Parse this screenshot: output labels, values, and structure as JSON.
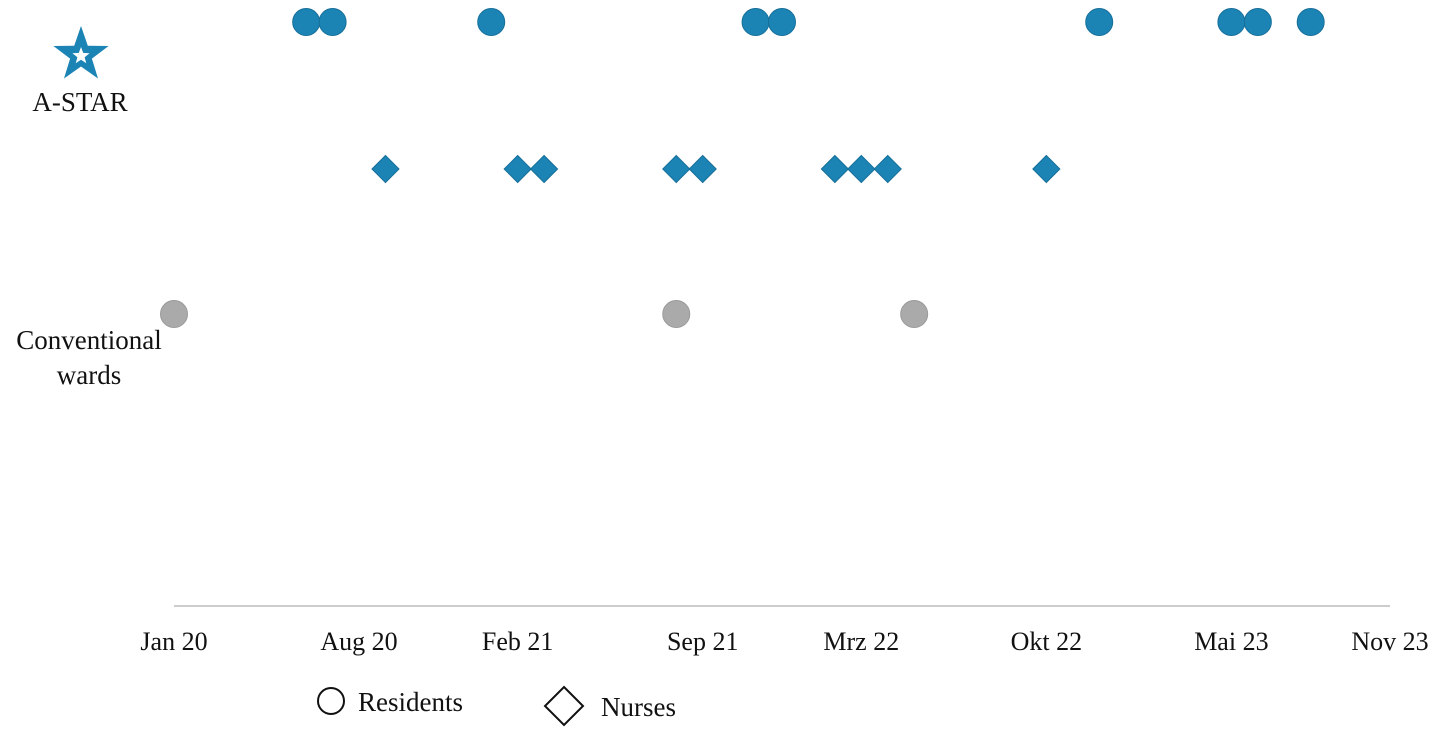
{
  "chart_data": {
    "type": "scatter",
    "title": "",
    "xlabel": "",
    "ylabel": "",
    "x_axis": {
      "tick_labels": [
        "Jan 20",
        "Aug 20",
        "Feb 21",
        "Sep 21",
        "Mrz 22",
        "Okt 22",
        "Mai 23",
        "Nov 23"
      ],
      "tick_dates": [
        "2020-01",
        "2020-08",
        "2021-02",
        "2021-09",
        "2022-03",
        "2022-10",
        "2023-05",
        "2023-11"
      ],
      "range": [
        "2020-01",
        "2023-11"
      ]
    },
    "groups": [
      {
        "label": "A-STAR",
        "icon": "star-icon",
        "color": "#1b84b5"
      },
      {
        "label": "Conventional\nwards",
        "color": "#aaaaaa"
      }
    ],
    "series": [
      {
        "name": "Residents",
        "group": "A-STAR",
        "marker": "circle",
        "color": "#1b84b5",
        "x": [
          "2020-06",
          "2020-07",
          "2021-01",
          "2021-11",
          "2021-12",
          "2022-12",
          "2023-05",
          "2023-06",
          "2023-08"
        ]
      },
      {
        "name": "Nurses",
        "group": "A-STAR",
        "marker": "diamond",
        "color": "#1b84b5",
        "x": [
          "2020-09",
          "2021-02",
          "2021-03",
          "2021-08",
          "2021-09",
          "2022-02",
          "2022-03",
          "2022-04",
          "2022-10"
        ]
      },
      {
        "name": "Conventional wards",
        "group": "Conventional\nwards",
        "marker": "circle",
        "color": "#aaaaaa",
        "x": [
          "2020-01",
          "2021-08",
          "2022-05"
        ]
      }
    ],
    "legend": {
      "placement": "bottom-center",
      "entries": [
        {
          "label": "Residents",
          "marker": "circle"
        },
        {
          "label": "Nurses",
          "marker": "diamond"
        }
      ]
    },
    "grid": false
  }
}
